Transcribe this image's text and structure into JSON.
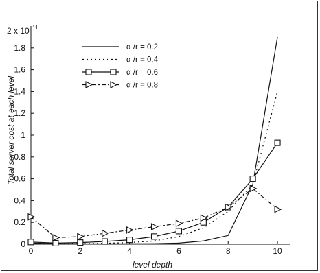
{
  "chart_data": {
    "type": "line",
    "title": "",
    "xlabel": "level depth",
    "ylabel": "Total server cost at each level",
    "y_multiplier": {
      "base": "2 x 10",
      "exponent": "11"
    },
    "xlim": [
      0,
      10.5
    ],
    "ylim": [
      0,
      2.0
    ],
    "x_ticks": [
      0,
      2,
      4,
      6,
      8,
      10
    ],
    "x_tick_labels": [
      "0",
      "2",
      "4",
      "6",
      "8",
      "10"
    ],
    "y_ticks": [
      0,
      0.2,
      0.4,
      0.6,
      0.8,
      1.0,
      1.2,
      1.4,
      1.6,
      1.8
    ],
    "y_tick_labels": [
      "0",
      "0.2",
      "0.4",
      "0.6",
      "0.8",
      "1",
      "1.2",
      "1.4",
      "1.6",
      "1.8"
    ],
    "grid": false,
    "legend_position": "top-left",
    "x": [
      0,
      1,
      2,
      3,
      4,
      5,
      6,
      7,
      8,
      9,
      10
    ],
    "series": [
      {
        "name": "α /r = 0.2",
        "values": [
          0.01,
          0.005,
          0.003,
          0.003,
          0.004,
          0.005,
          0.01,
          0.03,
          0.08,
          0.55,
          1.9
        ],
        "style": "solid",
        "marker": "none"
      },
      {
        "name": "α /r = 0.4",
        "values": [
          0.01,
          0.005,
          0.005,
          0.008,
          0.015,
          0.03,
          0.07,
          0.15,
          0.3,
          0.55,
          1.4
        ],
        "style": "dotted",
        "marker": "none"
      },
      {
        "name": "α /r = 0.6",
        "values": [
          0.02,
          0.01,
          0.015,
          0.025,
          0.04,
          0.07,
          0.12,
          0.2,
          0.34,
          0.6,
          0.93
        ],
        "style": "solid",
        "marker": "square"
      },
      {
        "name": "α /r = 0.8",
        "values": [
          0.25,
          0.06,
          0.07,
          0.1,
          0.13,
          0.16,
          0.19,
          0.24,
          0.34,
          0.51,
          0.32
        ],
        "style": "dash-dot",
        "marker": "triangle-right"
      }
    ]
  }
}
